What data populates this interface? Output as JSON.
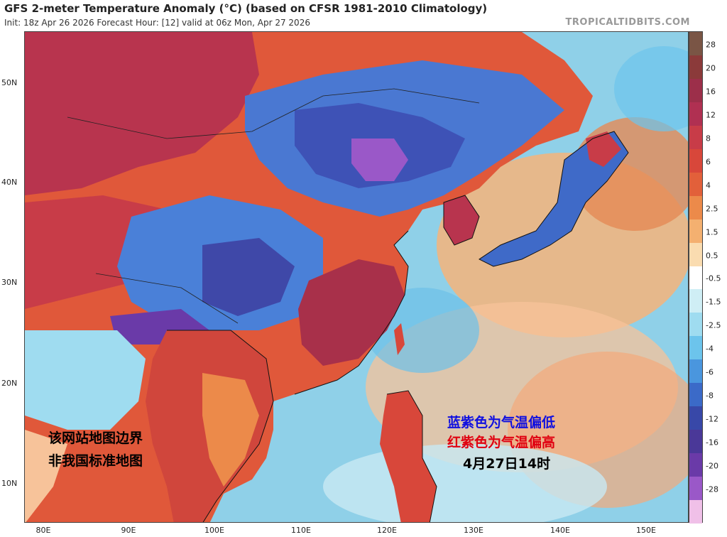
{
  "header": {
    "title": "GFS 2-meter Temperature Anomaly (°C) (based on CFSR 1981-2010 Climatology)",
    "subtitle": "Init: 18z Apr 26 2026   Forecast Hour: [12]   valid at 06z Mon, Apr 27 2026",
    "brand": "TROPICALTIDBITS.COM"
  },
  "axes": {
    "lat_labels": [
      "50N",
      "40N",
      "30N",
      "20N",
      "10N"
    ],
    "lon_labels": [
      "80E",
      "90E",
      "100E",
      "110E",
      "120E",
      "130E",
      "140E",
      "150E"
    ]
  },
  "colorbar": {
    "labels": [
      "28",
      "20",
      "16",
      "12",
      "8",
      "6",
      "4",
      "2.5",
      "1.5",
      "0.5",
      "-0.5",
      "-1.5",
      "-2.5",
      "-4",
      "-6",
      "-8",
      "-12",
      "-16",
      "-20",
      "-28"
    ],
    "colors": [
      "#7a5545",
      "#8b3a3a",
      "#9c2f4a",
      "#b03052",
      "#c83c48",
      "#d8473a",
      "#e2603a",
      "#ec8a4a",
      "#f4b070",
      "#fadcb0",
      "#ffffff",
      "#cfeef5",
      "#9fdcf0",
      "#6cc4ec",
      "#4a96de",
      "#3b6ac8",
      "#3848a8",
      "#4a3898",
      "#6a3aa8",
      "#9a58c8",
      "#f0c0e8"
    ]
  },
  "annotations": {
    "left_line1": "该网站地图边界",
    "left_line2": "非我国标准地图",
    "right_line1": "蓝紫色为气温偏低",
    "right_line2": "红紫色为气温偏高",
    "right_line3": "4月27日14时"
  }
}
